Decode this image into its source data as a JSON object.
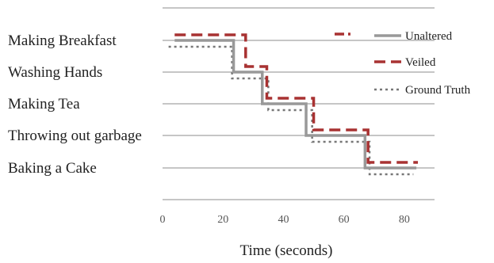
{
  "chart_data": {
    "type": "line",
    "title": "",
    "xlabel": "Time (seconds)",
    "ylabel": "",
    "xlim": [
      0,
      90
    ],
    "xticks": [
      0,
      20,
      40,
      60,
      80
    ],
    "categories": [
      "Making Breakfast",
      "Washing Hands",
      "Making Tea",
      "Throwing out garbage",
      "Baking a Cake"
    ],
    "grid": true,
    "legend_position": "top-right",
    "series": [
      {
        "name": "Unaltered",
        "style": "solid",
        "color": "#999999",
        "steps": [
          {
            "x0": 4,
            "x1": 23.5,
            "category": "Making Breakfast"
          },
          {
            "x0": 23.5,
            "x1": 33,
            "category": "Washing Hands"
          },
          {
            "x0": 33,
            "x1": 47.5,
            "category": "Making Tea"
          },
          {
            "x0": 47.5,
            "x1": 67,
            "category": "Throwing out garbage"
          },
          {
            "x0": 67,
            "x1": 84,
            "category": "Baking a Cake"
          }
        ]
      },
      {
        "name": "Veiled",
        "style": "dashed",
        "color": "#a83232",
        "steps": [
          {
            "x0": 4,
            "x1": 27.5,
            "category": "Making Breakfast"
          },
          {
            "x0": 27.5,
            "x1": 31,
            "category": "Washing Hands"
          },
          {
            "x0": 31,
            "x1": 34.5,
            "category": "Washing Hands"
          },
          {
            "x0": 34.5,
            "x1": 50,
            "category": "Making Tea"
          },
          {
            "x0": 50,
            "x1": 52,
            "category": "Throwing out garbage"
          },
          {
            "x0": 52,
            "x1": 68,
            "category": "Throwing out garbage"
          },
          {
            "x0": 68,
            "x1": 84.5,
            "category": "Baking a Cake"
          }
        ]
      },
      {
        "name": "Ground Truth",
        "style": "dotted",
        "color": "#777777",
        "steps": [
          {
            "x0": 2,
            "x1": 23,
            "category": "Making Breakfast"
          },
          {
            "x0": 23,
            "x1": 35,
            "category": "Washing Hands"
          },
          {
            "x0": 35,
            "x1": 49.5,
            "category": "Making Tea"
          },
          {
            "x0": 49.5,
            "x1": 68.5,
            "category": "Throwing out garbage"
          },
          {
            "x0": 68.5,
            "x1": 83,
            "category": "Baking a Cake"
          }
        ]
      }
    ]
  }
}
